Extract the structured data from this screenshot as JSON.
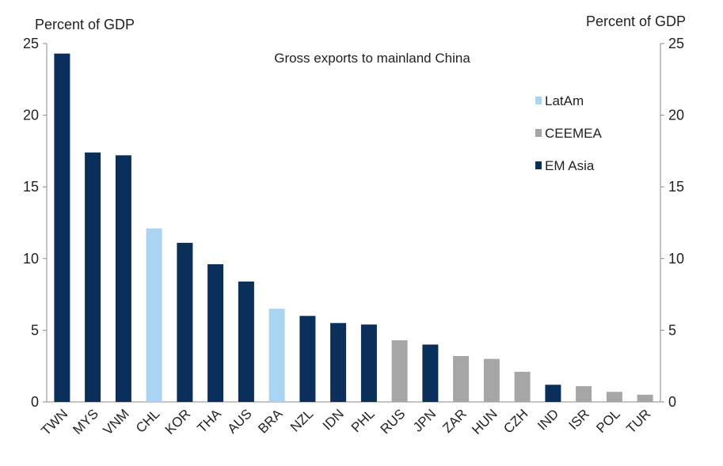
{
  "chart_data": {
    "type": "bar",
    "title": "Gross exports to mainland China",
    "ylabel_left": "Percent of GDP",
    "ylabel_right": "Percent of GDP",
    "ylim": [
      0,
      25
    ],
    "yticks": [
      0,
      5,
      10,
      15,
      20,
      25
    ],
    "categories": [
      "TWN",
      "MYS",
      "VNM",
      "CHL",
      "KOR",
      "THA",
      "AUS",
      "BRA",
      "NZL",
      "IDN",
      "PHL",
      "RUS",
      "JPN",
      "ZAR",
      "HUN",
      "CZH",
      "IND",
      "ISR",
      "POL",
      "TUR"
    ],
    "values": [
      24.3,
      17.4,
      17.2,
      12.1,
      11.1,
      9.6,
      8.4,
      6.5,
      6.0,
      5.5,
      5.4,
      4.3,
      4.0,
      3.2,
      3.0,
      2.1,
      1.2,
      1.1,
      0.7,
      0.5
    ],
    "groups": [
      "EM Asia",
      "EM Asia",
      "EM Asia",
      "LatAm",
      "EM Asia",
      "EM Asia",
      "EM Asia",
      "LatAm",
      "EM Asia",
      "EM Asia",
      "EM Asia",
      "CEEMEA",
      "EM Asia",
      "CEEMEA",
      "CEEMEA",
      "CEEMEA",
      "EM Asia",
      "CEEMEA",
      "CEEMEA",
      "CEEMEA"
    ],
    "legend": [
      {
        "name": "LatAm",
        "color": "#a9d4f2"
      },
      {
        "name": "CEEMEA",
        "color": "#a6a6a6"
      },
      {
        "name": "EM Asia",
        "color": "#0b2f5b"
      }
    ],
    "legend_position": "top-right",
    "grid": false
  }
}
